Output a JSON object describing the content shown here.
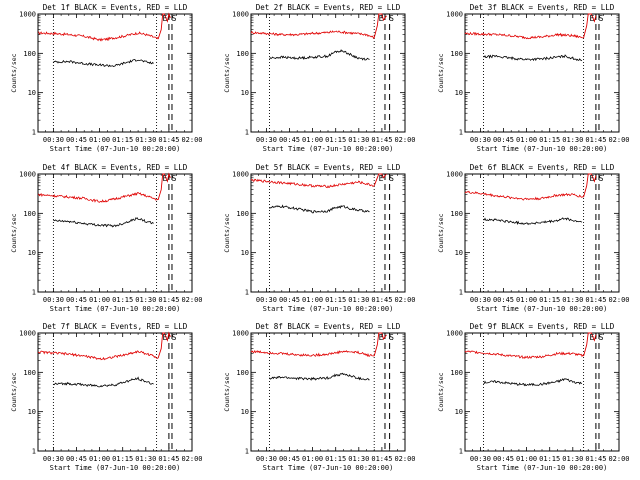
{
  "colors": {
    "events": "#000000",
    "lld": "#e00000",
    "axes": "#000000",
    "background": "#ffffff"
  },
  "chart_data": [
    {
      "type": "line",
      "title": "Det 1f BLACK = Events, RED = LLD",
      "xlabel": "Start Time (07-Jun-10 00:20:00)",
      "ylabel": "Counts/sec",
      "y_scale": "log",
      "ylim": [
        1,
        1000
      ],
      "y_ticks": [
        "1",
        "10",
        "100",
        "1000"
      ],
      "xlim": [
        "00:20",
        "02:00"
      ],
      "x_ticks": [
        "00:30",
        "00:45",
        "01:00",
        "01:15",
        "01:30",
        "01:45",
        "02:00"
      ],
      "annotations": [
        "E",
        "S"
      ],
      "dotted_lines_x": [
        "00:30",
        "01:37"
      ],
      "dashed_lines_x": [
        "01:45",
        "01:47"
      ],
      "series": [
        {
          "color": "#e00000",
          "x": [
            "00:20",
            "00:30",
            "00:40",
            "00:50",
            "01:00",
            "01:05",
            "01:15",
            "01:25",
            "01:30",
            "01:35",
            "01:38"
          ],
          "y": [
            330,
            320,
            300,
            270,
            220,
            230,
            270,
            330,
            300,
            260,
            230
          ]
        },
        {
          "color": "#000000",
          "x": [
            "00:30",
            "00:40",
            "00:50",
            "01:00",
            "01:10",
            "01:15",
            "01:20",
            "01:25",
            "01:30",
            "01:35"
          ],
          "y": [
            60,
            62,
            55,
            50,
            48,
            55,
            62,
            70,
            60,
            55
          ]
        }
      ],
      "spike": {
        "x": [
          "01:38",
          "01:40",
          "01:41",
          "01:42",
          "01:44",
          "01:45",
          "01:46"
        ],
        "y": [
          230,
          400,
          1000,
          1000,
          650,
          1000,
          800
        ]
      }
    },
    {
      "type": "line",
      "title": "Det 2f BLACK = Events, RED = LLD",
      "xlabel": "Start Time (07-Jun-10 00:20:00)",
      "ylabel": "Counts/sec",
      "y_scale": "log",
      "ylim": [
        1,
        1000
      ],
      "y_ticks": [
        "1",
        "10",
        "100",
        "1000"
      ],
      "xlim": [
        "00:20",
        "02:00"
      ],
      "x_ticks": [
        "00:30",
        "00:45",
        "01:00",
        "01:15",
        "01:30",
        "01:45",
        "02:00"
      ],
      "annotations": [
        "E",
        "S"
      ],
      "dotted_lines_x": [
        "00:32",
        "01:40"
      ],
      "dashed_lines_x": [
        "01:47",
        "01:50"
      ],
      "series": [
        {
          "color": "#e00000",
          "x": [
            "00:20",
            "00:30",
            "00:40",
            "00:50",
            "01:00",
            "01:10",
            "01:15",
            "01:25",
            "01:35",
            "01:40"
          ],
          "y": [
            340,
            320,
            300,
            300,
            320,
            340,
            360,
            330,
            300,
            250
          ]
        },
        {
          "color": "#000000",
          "x": [
            "00:32",
            "00:40",
            "00:50",
            "01:00",
            "01:10",
            "01:15",
            "01:20",
            "01:25",
            "01:30",
            "01:37"
          ],
          "y": [
            75,
            80,
            75,
            80,
            85,
            110,
            115,
            90,
            75,
            70
          ]
        }
      ],
      "spike": {
        "x": [
          "01:40",
          "01:42",
          "01:43",
          "01:45",
          "01:46",
          "01:48"
        ],
        "y": [
          250,
          500,
          1000,
          1000,
          700,
          900
        ]
      }
    },
    {
      "type": "line",
      "title": "Det 3f BLACK = Events, RED = LLD",
      "xlabel": "Start Time (07-Jun-10 00:20:00)",
      "ylabel": "Counts/sec",
      "y_scale": "log",
      "ylim": [
        1,
        1000
      ],
      "y_ticks": [
        "1",
        "10",
        "100",
        "1000"
      ],
      "xlim": [
        "00:20",
        "02:00"
      ],
      "x_ticks": [
        "00:30",
        "00:45",
        "01:00",
        "01:15",
        "01:30",
        "01:45",
        "02:00"
      ],
      "annotations": [
        "E",
        "S"
      ],
      "dotted_lines_x": [
        "00:32",
        "01:37"
      ],
      "dashed_lines_x": [
        "01:45",
        "01:47"
      ],
      "series": [
        {
          "color": "#e00000",
          "x": [
            "00:20",
            "00:30",
            "00:40",
            "00:50",
            "01:00",
            "01:10",
            "01:20",
            "01:30",
            "01:37"
          ],
          "y": [
            320,
            310,
            300,
            280,
            250,
            260,
            300,
            280,
            250
          ]
        },
        {
          "color": "#000000",
          "x": [
            "00:32",
            "00:40",
            "00:50",
            "01:00",
            "01:10",
            "01:20",
            "01:25",
            "01:30",
            "01:36"
          ],
          "y": [
            80,
            85,
            75,
            70,
            72,
            80,
            85,
            75,
            65
          ]
        }
      ],
      "spike": {
        "x": [
          "01:37",
          "01:39",
          "01:40",
          "01:42",
          "01:44",
          "01:45"
        ],
        "y": [
          250,
          500,
          1000,
          1000,
          650,
          900
        ]
      }
    },
    {
      "type": "line",
      "title": "Det 4f BLACK = Events, RED = LLD",
      "xlabel": "Start Time (07-Jun-10 00:20:00)",
      "ylabel": "Counts/sec",
      "y_scale": "log",
      "ylim": [
        1,
        1000
      ],
      "y_ticks": [
        "1",
        "10",
        "100",
        "1000"
      ],
      "xlim": [
        "00:20",
        "02:00"
      ],
      "x_ticks": [
        "00:30",
        "00:45",
        "01:00",
        "01:15",
        "01:30",
        "01:45",
        "02:00"
      ],
      "annotations": [
        "E",
        "S"
      ],
      "dotted_lines_x": [
        "00:30",
        "01:37"
      ],
      "dashed_lines_x": [
        "01:45",
        "01:47"
      ],
      "series": [
        {
          "color": "#e00000",
          "x": [
            "00:20",
            "00:30",
            "00:40",
            "00:50",
            "01:00",
            "01:05",
            "01:15",
            "01:25",
            "01:30",
            "01:35",
            "01:38"
          ],
          "y": [
            300,
            280,
            260,
            240,
            200,
            210,
            260,
            320,
            280,
            240,
            220
          ]
        },
        {
          "color": "#000000",
          "x": [
            "00:30",
            "00:40",
            "00:50",
            "01:00",
            "01:10",
            "01:15",
            "01:20",
            "01:25",
            "01:30",
            "01:35"
          ],
          "y": [
            65,
            62,
            55,
            50,
            48,
            55,
            65,
            75,
            62,
            55
          ]
        }
      ],
      "spike": {
        "x": [
          "01:38",
          "01:40",
          "01:41",
          "01:42",
          "01:44",
          "01:45",
          "01:46"
        ],
        "y": [
          220,
          400,
          1000,
          1000,
          650,
          1000,
          800
        ]
      }
    },
    {
      "type": "line",
      "title": "Det 5f BLACK = Events, RED = LLD",
      "xlabel": "Start Time (07-Jun-10 00:20:00)",
      "ylabel": "Counts/sec",
      "y_scale": "log",
      "ylim": [
        1,
        1000
      ],
      "y_ticks": [
        "1",
        "10",
        "100",
        "1000"
      ],
      "xlim": [
        "00:20",
        "02:00"
      ],
      "x_ticks": [
        "00:30",
        "00:45",
        "01:00",
        "01:15",
        "01:30",
        "01:45",
        "02:00"
      ],
      "annotations": [
        "E",
        "S"
      ],
      "dotted_lines_x": [
        "00:32",
        "01:40"
      ],
      "dashed_lines_x": [
        "01:47",
        "01:50"
      ],
      "series": [
        {
          "color": "#e00000",
          "x": [
            "00:20",
            "00:30",
            "00:40",
            "00:50",
            "01:00",
            "01:10",
            "01:20",
            "01:30",
            "01:35",
            "01:40"
          ],
          "y": [
            700,
            650,
            600,
            550,
            500,
            480,
            550,
            620,
            560,
            500
          ]
        },
        {
          "color": "#000000",
          "x": [
            "00:32",
            "00:40",
            "00:50",
            "01:00",
            "01:10",
            "01:15",
            "01:20",
            "01:25",
            "01:30",
            "01:37"
          ],
          "y": [
            140,
            150,
            130,
            110,
            115,
            140,
            150,
            130,
            120,
            110
          ]
        }
      ],
      "spike": {
        "x": [
          "01:40",
          "01:42",
          "01:43",
          "01:45",
          "01:46",
          "01:48"
        ],
        "y": [
          500,
          800,
          1000,
          1000,
          800,
          1000
        ]
      }
    },
    {
      "type": "line",
      "title": "Det 6f BLACK = Events, RED = LLD",
      "xlabel": "Start Time (07-Jun-10 00:20:00)",
      "ylabel": "Counts/sec",
      "y_scale": "log",
      "ylim": [
        1,
        1000
      ],
      "y_ticks": [
        "1",
        "10",
        "100",
        "1000"
      ],
      "xlim": [
        "00:20",
        "02:00"
      ],
      "x_ticks": [
        "00:30",
        "00:45",
        "01:00",
        "01:15",
        "01:30",
        "01:45",
        "02:00"
      ],
      "annotations": [
        "E",
        "S"
      ],
      "dotted_lines_x": [
        "00:32",
        "01:37"
      ],
      "dashed_lines_x": [
        "01:45",
        "01:47"
      ],
      "series": [
        {
          "color": "#e00000",
          "x": [
            "00:20",
            "00:30",
            "00:40",
            "00:50",
            "01:00",
            "01:10",
            "01:20",
            "01:30",
            "01:37"
          ],
          "y": [
            350,
            320,
            280,
            250,
            230,
            240,
            290,
            300,
            260
          ]
        },
        {
          "color": "#000000",
          "x": [
            "00:32",
            "00:40",
            "00:50",
            "01:00",
            "01:10",
            "01:20",
            "01:25",
            "01:30",
            "01:36"
          ],
          "y": [
            70,
            68,
            60,
            55,
            58,
            65,
            75,
            65,
            60
          ]
        }
      ],
      "spike": {
        "x": [
          "01:37",
          "01:39",
          "01:40",
          "01:42",
          "01:44",
          "01:45"
        ],
        "y": [
          260,
          500,
          1000,
          1000,
          650,
          900
        ]
      }
    },
    {
      "type": "line",
      "title": "Det 7f BLACK = Events, RED = LLD",
      "xlabel": "Start Time (07-Jun-10 00:20:00)",
      "ylabel": "Counts/sec",
      "y_scale": "log",
      "ylim": [
        1,
        1000
      ],
      "y_ticks": [
        "1",
        "10",
        "100",
        "1000"
      ],
      "xlim": [
        "00:20",
        "02:00"
      ],
      "x_ticks": [
        "00:30",
        "00:45",
        "01:00",
        "01:15",
        "01:30",
        "01:45",
        "02:00"
      ],
      "annotations": [
        "E",
        "S"
      ],
      "dotted_lines_x": [
        "00:30",
        "01:37"
      ],
      "dashed_lines_x": [
        "01:45",
        "01:47"
      ],
      "series": [
        {
          "color": "#e00000",
          "x": [
            "00:20",
            "00:30",
            "00:40",
            "00:50",
            "01:00",
            "01:05",
            "01:15",
            "01:25",
            "01:30",
            "01:35",
            "01:38"
          ],
          "y": [
            330,
            310,
            290,
            260,
            220,
            230,
            270,
            340,
            300,
            260,
            230
          ]
        },
        {
          "color": "#000000",
          "x": [
            "00:30",
            "00:40",
            "00:50",
            "01:00",
            "01:10",
            "01:15",
            "01:20",
            "01:25",
            "01:30",
            "01:35"
          ],
          "y": [
            50,
            52,
            48,
            45,
            48,
            55,
            62,
            70,
            58,
            50
          ]
        }
      ],
      "spike": {
        "x": [
          "01:38",
          "01:40",
          "01:41",
          "01:42",
          "01:44",
          "01:45",
          "01:46"
        ],
        "y": [
          230,
          400,
          1000,
          1000,
          650,
          1000,
          800
        ]
      }
    },
    {
      "type": "line",
      "title": "Det 8f BLACK = Events, RED = LLD",
      "xlabel": "Start Time (07-Jun-10 00:20:00)",
      "ylabel": "Counts/sec",
      "y_scale": "log",
      "ylim": [
        1,
        1000
      ],
      "y_ticks": [
        "1",
        "10",
        "100",
        "1000"
      ],
      "xlim": [
        "00:20",
        "02:00"
      ],
      "x_ticks": [
        "00:30",
        "00:45",
        "01:00",
        "01:15",
        "01:30",
        "01:45",
        "02:00"
      ],
      "annotations": [
        "E",
        "S"
      ],
      "dotted_lines_x": [
        "00:32",
        "01:40"
      ],
      "dashed_lines_x": [
        "01:47",
        "01:50"
      ],
      "series": [
        {
          "color": "#e00000",
          "x": [
            "00:20",
            "00:30",
            "00:40",
            "00:50",
            "01:00",
            "01:10",
            "01:20",
            "01:30",
            "01:35",
            "01:40"
          ],
          "y": [
            340,
            320,
            300,
            280,
            270,
            290,
            340,
            320,
            280,
            260
          ]
        },
        {
          "color": "#000000",
          "x": [
            "00:32",
            "00:40",
            "00:50",
            "01:00",
            "01:10",
            "01:15",
            "01:20",
            "01:25",
            "01:30",
            "01:37"
          ],
          "y": [
            70,
            75,
            70,
            68,
            72,
            85,
            90,
            80,
            70,
            65
          ]
        }
      ],
      "spike": {
        "x": [
          "01:40",
          "01:42",
          "01:43",
          "01:45",
          "01:46",
          "01:48"
        ],
        "y": [
          260,
          500,
          1000,
          1000,
          700,
          900
        ]
      }
    },
    {
      "type": "line",
      "title": "Det 9f BLACK = Events, RED = LLD",
      "xlabel": "Start Time (07-Jun-10 00:20:00)",
      "ylabel": "Counts/sec",
      "y_scale": "log",
      "ylim": [
        1,
        1000
      ],
      "y_ticks": [
        "1",
        "10",
        "100",
        "1000"
      ],
      "xlim": [
        "00:20",
        "02:00"
      ],
      "x_ticks": [
        "00:30",
        "00:45",
        "01:00",
        "01:15",
        "01:30",
        "01:45",
        "02:00"
      ],
      "annotations": [
        "E",
        "S"
      ],
      "dotted_lines_x": [
        "00:32",
        "01:37"
      ],
      "dashed_lines_x": [
        "01:45",
        "01:47"
      ],
      "series": [
        {
          "color": "#e00000",
          "x": [
            "00:20",
            "00:30",
            "00:40",
            "00:50",
            "01:00",
            "01:10",
            "01:20",
            "01:30",
            "01:37"
          ],
          "y": [
            340,
            320,
            290,
            260,
            240,
            250,
            300,
            300,
            260
          ]
        },
        {
          "color": "#000000",
          "x": [
            "00:32",
            "00:40",
            "00:50",
            "01:00",
            "01:10",
            "01:20",
            "01:25",
            "01:30",
            "01:36"
          ],
          "y": [
            55,
            58,
            52,
            48,
            50,
            58,
            68,
            58,
            52
          ]
        }
      ],
      "spike": {
        "x": [
          "01:37",
          "01:39",
          "01:40",
          "01:42",
          "01:44",
          "01:45"
        ],
        "y": [
          260,
          500,
          1000,
          1000,
          650,
          900
        ]
      }
    }
  ]
}
